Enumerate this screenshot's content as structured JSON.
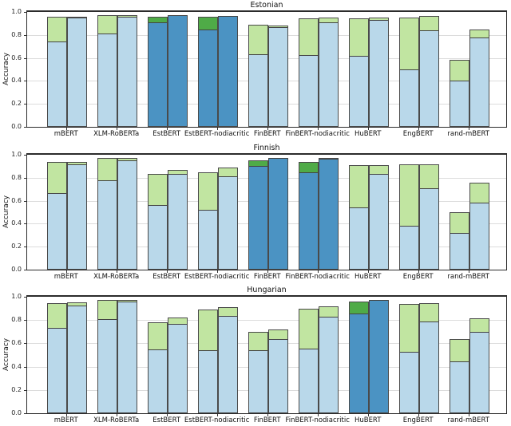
{
  "figure": {
    "background": "#ffffff",
    "colors": {
      "bar_blue_light": "#b9d8ea",
      "bar_blue_dark_highlight": "#4b93c3",
      "bar_green_light": "#c1e5a1",
      "bar_green_dark_highlight": "#4fab47",
      "bar_edge": "#4a4a4a",
      "gridline": "#dcdcdc",
      "axis_frame": "#2b2b2b",
      "text": "#1a1a1a"
    }
  },
  "chart_data": [
    {
      "type": "bar",
      "title": "Estonian",
      "xlabel": "",
      "ylabel": "Accuracy",
      "ylim": [
        0.0,
        1.0
      ],
      "yticks": [
        "0.0",
        "0.2",
        "0.4",
        "0.6",
        "0.8",
        "1.0"
      ],
      "grid": true,
      "legend": "none",
      "bar_style": "paired bars per model; each bar stacked: blue base segment + green top segment; highlighted models drawn in dark blue/dark green",
      "categories": [
        "mBERT",
        "XLM-RoBERTa",
        "EstBERT",
        "EstBERT-nodiacritic",
        "FinBERT",
        "FinBERT-nodiacritic",
        "HuBERT",
        "EngBERT",
        "rand-mBERT"
      ],
      "highlighted_category_indices": [
        2,
        3
      ],
      "series": [
        {
          "name": "left_bar_blue_base",
          "values": [
            0.74,
            0.81,
            0.91,
            0.85,
            0.63,
            0.625,
            0.62,
            0.5,
            0.4
          ]
        },
        {
          "name": "left_bar_green_total",
          "values": [
            0.96,
            0.975,
            0.955,
            0.955,
            0.89,
            0.945,
            0.945,
            0.95,
            0.585
          ]
        },
        {
          "name": "right_bar_blue_base",
          "values": [
            0.95,
            0.96,
            0.975,
            0.965,
            0.865,
            0.91,
            0.93,
            0.84,
            0.78
          ]
        },
        {
          "name": "right_bar_green_total",
          "values": [
            0.96,
            0.975,
            0.975,
            0.965,
            0.885,
            0.95,
            0.95,
            0.965,
            0.85
          ]
        }
      ]
    },
    {
      "type": "bar",
      "title": "Finnish",
      "xlabel": "",
      "ylabel": "Accuracy",
      "ylim": [
        0.0,
        1.0
      ],
      "yticks": [
        "0.0",
        "0.2",
        "0.4",
        "0.6",
        "0.8",
        "1.0"
      ],
      "grid": true,
      "legend": "none",
      "bar_style": "paired bars per model; each bar stacked: blue base segment + green top segment; highlighted models drawn in dark blue/dark green",
      "categories": [
        "mBERT",
        "XLM-RoBERTa",
        "EstBERT",
        "EstBERT-nodiacritic",
        "FinBERT",
        "FinBERT-nodiacritic",
        "HuBERT",
        "EngBERT",
        "rand-mBERT"
      ],
      "highlighted_category_indices": [
        4,
        5
      ],
      "series": [
        {
          "name": "left_bar_blue_base",
          "values": [
            0.67,
            0.775,
            0.56,
            0.52,
            0.9,
            0.845,
            0.54,
            0.38,
            0.32
          ]
        },
        {
          "name": "left_bar_green_total",
          "values": [
            0.935,
            0.97,
            0.835,
            0.85,
            0.95,
            0.935,
            0.91,
            0.915,
            0.5
          ]
        },
        {
          "name": "right_bar_blue_base",
          "values": [
            0.92,
            0.95,
            0.83,
            0.81,
            0.975,
            0.965,
            0.83,
            0.71,
            0.585
          ]
        },
        {
          "name": "right_bar_green_total",
          "values": [
            0.94,
            0.97,
            0.87,
            0.89,
            0.975,
            0.97,
            0.91,
            0.92,
            0.76
          ]
        }
      ]
    },
    {
      "type": "bar",
      "title": "Hungarian",
      "xlabel": "",
      "ylabel": "Accuracy",
      "ylim": [
        0.0,
        1.0
      ],
      "yticks": [
        "0.0",
        "0.2",
        "0.4",
        "0.6",
        "0.8",
        "1.0"
      ],
      "grid": true,
      "legend": "none",
      "bar_style": "paired bars per model; each bar stacked: blue base segment + green top segment; highlighted models drawn in dark blue/dark green",
      "categories": [
        "mBERT",
        "XLM-RoBERTa",
        "EstBERT",
        "EstBERT-nodiacritic",
        "FinBERT",
        "FinBERT-nodiacritic",
        "HuBERT",
        "EngBERT",
        "rand-mBERT"
      ],
      "highlighted_category_indices": [
        6
      ],
      "series": [
        {
          "name": "left_bar_blue_base",
          "values": [
            0.73,
            0.805,
            0.545,
            0.54,
            0.54,
            0.555,
            0.855,
            0.53,
            0.445
          ]
        },
        {
          "name": "left_bar_green_total",
          "values": [
            0.945,
            0.975,
            0.78,
            0.89,
            0.7,
            0.895,
            0.96,
            0.94,
            0.64
          ]
        },
        {
          "name": "right_bar_blue_base",
          "values": [
            0.925,
            0.96,
            0.765,
            0.835,
            0.64,
            0.83,
            0.975,
            0.79,
            0.7
          ]
        },
        {
          "name": "right_bar_green_total",
          "values": [
            0.955,
            0.975,
            0.82,
            0.91,
            0.72,
            0.915,
            0.975,
            0.945,
            0.815
          ]
        }
      ]
    }
  ]
}
